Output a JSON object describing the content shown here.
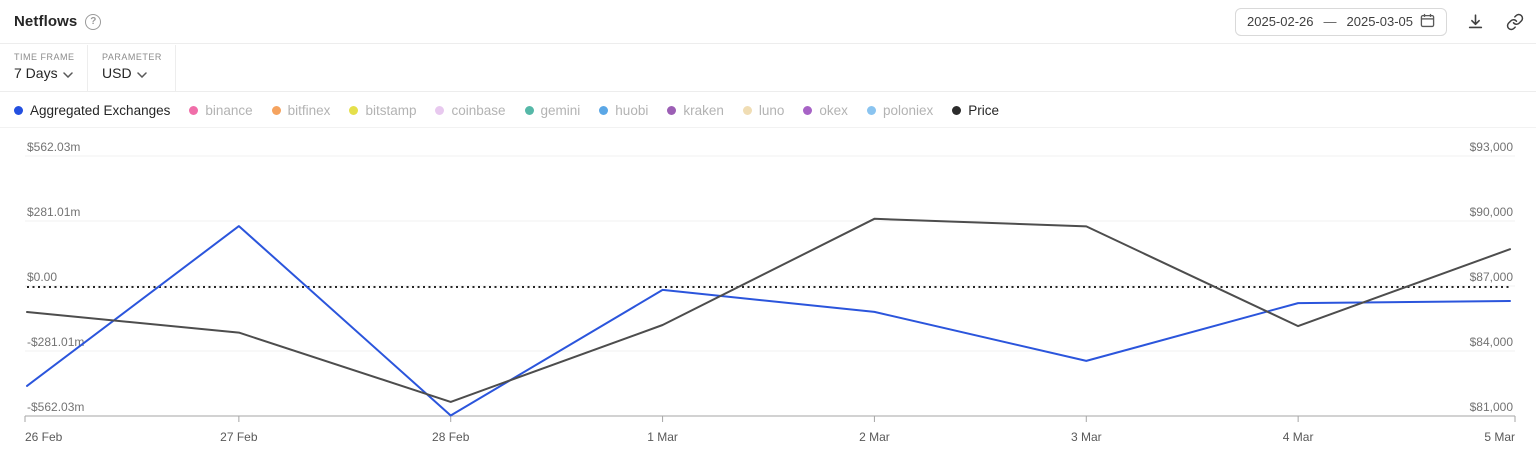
{
  "header": {
    "title": "Netflows",
    "help_icon": "question-mark-circle",
    "date_range": {
      "start": "2025-02-26",
      "separator": "—",
      "end": "2025-03-05"
    },
    "icons": [
      "calendar-icon",
      "download-icon",
      "link-icon"
    ]
  },
  "controls": [
    {
      "label": "TIME FRAME",
      "value": "7 Days"
    },
    {
      "label": "PARAMETER",
      "value": "USD"
    }
  ],
  "legend": [
    {
      "label": "Aggregated Exchanges",
      "color": "#2450e0",
      "active": true
    },
    {
      "label": "binance",
      "color": "#f06ea9",
      "active": false
    },
    {
      "label": "bitfinex",
      "color": "#f5a35f",
      "active": false
    },
    {
      "label": "bitstamp",
      "color": "#e5e04b",
      "active": false
    },
    {
      "label": "coinbase",
      "color": "#e8c9ef",
      "active": false
    },
    {
      "label": "gemini",
      "color": "#56b8a8",
      "active": false
    },
    {
      "label": "huobi",
      "color": "#5ba7e6",
      "active": false
    },
    {
      "label": "kraken",
      "color": "#9c5fb5",
      "active": false
    },
    {
      "label": "luno",
      "color": "#f0ddb4",
      "active": false
    },
    {
      "label": "okex",
      "color": "#a763c6",
      "active": false
    },
    {
      "label": "poloniex",
      "color": "#8ac4f0",
      "active": false
    },
    {
      "label": "Price",
      "color": "#2b2b2b",
      "active": true
    }
  ],
  "chart_data": {
    "type": "line",
    "title": "Netflows",
    "x": [
      "26 Feb",
      "27 Feb",
      "28 Feb",
      "1 Mar",
      "2 Mar",
      "3 Mar",
      "4 Mar",
      "5 Mar"
    ],
    "series": [
      {
        "name": "Aggregated Exchanges",
        "axis": "left",
        "color": "#2b55dc",
        "unit": "million USD",
        "values": [
          -432,
          259,
          -560,
          -17,
          -112,
          -324,
          -74,
          -65
        ]
      },
      {
        "name": "Price",
        "axis": "right",
        "color": "#4d4d4d",
        "unit": "USD",
        "values": [
          85800,
          84850,
          81650,
          85200,
          90100,
          89750,
          85150,
          88700
        ]
      }
    ],
    "left_axis": {
      "ticks": [
        "$562.03m",
        "$281.01m",
        "$0.00",
        "-$281.01m",
        "-$562.03m"
      ],
      "range": [
        -562.03,
        562.03
      ],
      "unit": "million USD"
    },
    "right_axis": {
      "ticks": [
        "$93,000",
        "$90,000",
        "$87,000",
        "$84,000",
        "$81,000"
      ],
      "range": [
        81000,
        93000
      ],
      "unit": "USD"
    },
    "zero_line": {
      "style": "dotted",
      "at_left_value": 0,
      "at_right_value": 87000
    },
    "grid": true,
    "legend_position": "top"
  }
}
